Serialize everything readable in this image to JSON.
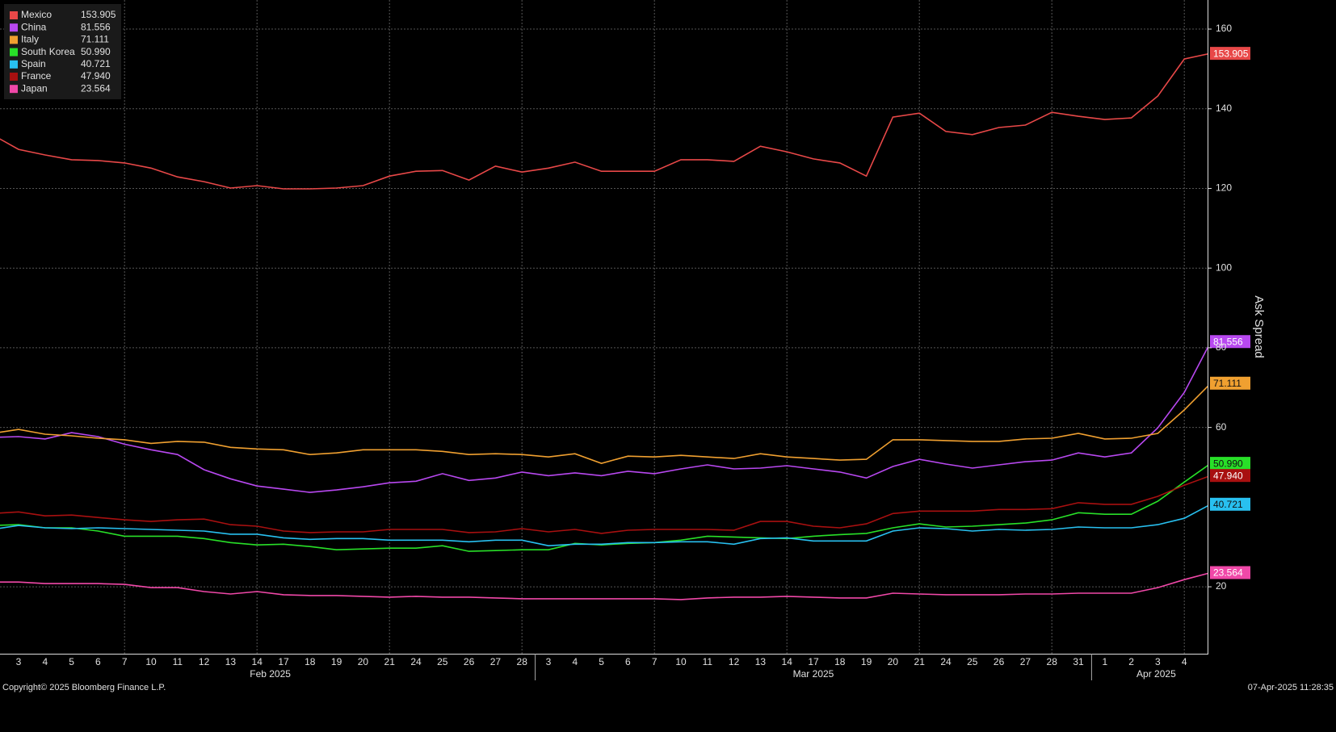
{
  "chart_data": {
    "type": "line",
    "y_label": "Ask Spread",
    "copyright": "Copyright© 2025 Bloomberg Finance L.P.",
    "timestamp": "07-Apr-2025 11:28:35",
    "categories": [
      null,
      "3",
      "4",
      "5",
      "6",
      "7",
      "10",
      "11",
      "12",
      "13",
      "14",
      "17",
      "18",
      "19",
      "20",
      "21",
      "24",
      "25",
      "26",
      "27",
      "28",
      "3",
      "4",
      "5",
      "6",
      "7",
      "10",
      "11",
      "12",
      "13",
      "14",
      "17",
      "18",
      "19",
      "20",
      "21",
      "24",
      "25",
      "26",
      "27",
      "28",
      "31",
      "1",
      "2",
      "3",
      "4",
      null
    ],
    "x_groups": [
      {
        "label": "Feb 2025",
        "first": 1,
        "last": 20
      },
      {
        "label": "Mar 2025",
        "first": 21,
        "last": 41
      },
      {
        "label": "Apr 2025",
        "first": 42,
        "last": 46
      }
    ],
    "ylim": [
      3.2,
      167.3
    ],
    "yticks": [
      20,
      60,
      80,
      100,
      120,
      140,
      160
    ],
    "grid": true,
    "series": [
      {
        "name": "Mexico",
        "color": "#e84848",
        "label": "153.905",
        "values": [
          133.5,
          129.8,
          128.4,
          127.2,
          127.0,
          126.4,
          125.1,
          122.9,
          121.7,
          120.1,
          120.7,
          119.9,
          119.9,
          120.1,
          120.7,
          123.1,
          124.3,
          124.5,
          122.1,
          125.6,
          124.1,
          125.1,
          126.6,
          124.3,
          124.3,
          124.3,
          127.2,
          127.2,
          126.8,
          130.6,
          129.2,
          127.4,
          126.4,
          123.1,
          137.9,
          138.9,
          134.3,
          133.5,
          135.3,
          135.9,
          139.1,
          138.1,
          137.3,
          137.7,
          143.2,
          152.5,
          153.905
        ]
      },
      {
        "name": "China",
        "color": "#b848f0",
        "label": "81.556",
        "values": [
          57.5,
          57.7,
          57.1,
          58.7,
          57.7,
          55.8,
          54.4,
          53.2,
          49.4,
          47.1,
          45.3,
          44.5,
          43.7,
          44.3,
          45.1,
          46.1,
          46.5,
          48.4,
          46.7,
          47.3,
          48.8,
          47.9,
          48.6,
          47.9,
          49.0,
          48.4,
          49.6,
          50.6,
          49.6,
          49.8,
          50.4,
          49.6,
          48.8,
          47.3,
          50.2,
          52.0,
          50.8,
          49.8,
          50.6,
          51.4,
          51.8,
          53.6,
          52.6,
          53.6,
          59.9,
          68.8,
          81.556
        ]
      },
      {
        "name": "Italy",
        "color": "#f0a030",
        "label": "71.111",
        "values": [
          58.5,
          59.5,
          58.3,
          57.9,
          57.3,
          56.9,
          56.0,
          56.5,
          56.3,
          55.0,
          54.6,
          54.4,
          53.2,
          53.6,
          54.4,
          54.4,
          54.4,
          54.0,
          53.2,
          53.4,
          53.2,
          52.6,
          53.4,
          51.0,
          52.8,
          52.6,
          53.0,
          52.6,
          52.2,
          53.4,
          52.6,
          52.2,
          51.8,
          52.0,
          56.9,
          56.9,
          56.7,
          56.5,
          56.5,
          57.1,
          57.3,
          58.5,
          57.1,
          57.3,
          58.5,
          64.4,
          71.111
        ]
      },
      {
        "name": "South Korea",
        "color": "#28e028",
        "label": "50.990",
        "values": [
          35.4,
          35.6,
          34.8,
          34.8,
          34.0,
          32.7,
          32.7,
          32.7,
          32.1,
          31.1,
          30.5,
          30.7,
          30.1,
          29.3,
          29.5,
          29.7,
          29.7,
          30.3,
          28.9,
          29.1,
          29.3,
          29.3,
          30.9,
          30.5,
          30.9,
          31.1,
          31.7,
          32.7,
          32.5,
          32.3,
          32.1,
          32.7,
          33.1,
          33.4,
          34.8,
          35.8,
          35.0,
          35.2,
          35.6,
          36.0,
          36.8,
          38.6,
          38.2,
          38.2,
          41.5,
          46.3,
          50.99
        ]
      },
      {
        "name": "Spain",
        "color": "#28c0f0",
        "label": "40.721",
        "values": [
          34.4,
          35.4,
          34.8,
          34.6,
          34.8,
          34.6,
          34.4,
          34.2,
          34.0,
          33.2,
          33.2,
          32.3,
          31.9,
          32.1,
          32.1,
          31.7,
          31.7,
          31.7,
          31.3,
          31.7,
          31.7,
          30.3,
          30.7,
          30.7,
          31.1,
          31.1,
          31.3,
          31.3,
          30.7,
          32.1,
          32.3,
          31.5,
          31.5,
          31.5,
          34.0,
          34.8,
          34.6,
          34.0,
          34.4,
          34.2,
          34.4,
          35.0,
          34.8,
          34.8,
          35.6,
          37.2,
          40.721
        ]
      },
      {
        "name": "France",
        "color": "#a81010",
        "label": "47.940",
        "values": [
          38.4,
          38.8,
          37.8,
          38.0,
          37.4,
          36.8,
          36.4,
          36.8,
          37.0,
          35.6,
          35.2,
          34.0,
          33.6,
          33.8,
          33.8,
          34.4,
          34.4,
          34.4,
          33.6,
          33.8,
          34.6,
          33.8,
          34.4,
          33.4,
          34.2,
          34.4,
          34.4,
          34.4,
          34.2,
          36.4,
          36.4,
          35.2,
          34.8,
          35.8,
          38.4,
          39.0,
          39.0,
          39.0,
          39.4,
          39.4,
          39.6,
          41.1,
          40.7,
          40.7,
          42.7,
          45.5,
          47.94
        ]
      },
      {
        "name": "Japan",
        "color": "#f048a8",
        "label": "23.564",
        "values": [
          21.2,
          21.2,
          20.8,
          20.8,
          20.8,
          20.6,
          19.8,
          19.8,
          18.8,
          18.2,
          18.8,
          18.0,
          17.8,
          17.8,
          17.6,
          17.4,
          17.6,
          17.4,
          17.4,
          17.2,
          17.0,
          17.0,
          17.0,
          17.0,
          17.0,
          17.0,
          16.8,
          17.2,
          17.4,
          17.4,
          17.6,
          17.4,
          17.2,
          17.2,
          18.4,
          18.2,
          18.0,
          18.0,
          18.0,
          18.2,
          18.2,
          18.4,
          18.4,
          18.4,
          19.8,
          21.8,
          23.564
        ]
      }
    ]
  }
}
